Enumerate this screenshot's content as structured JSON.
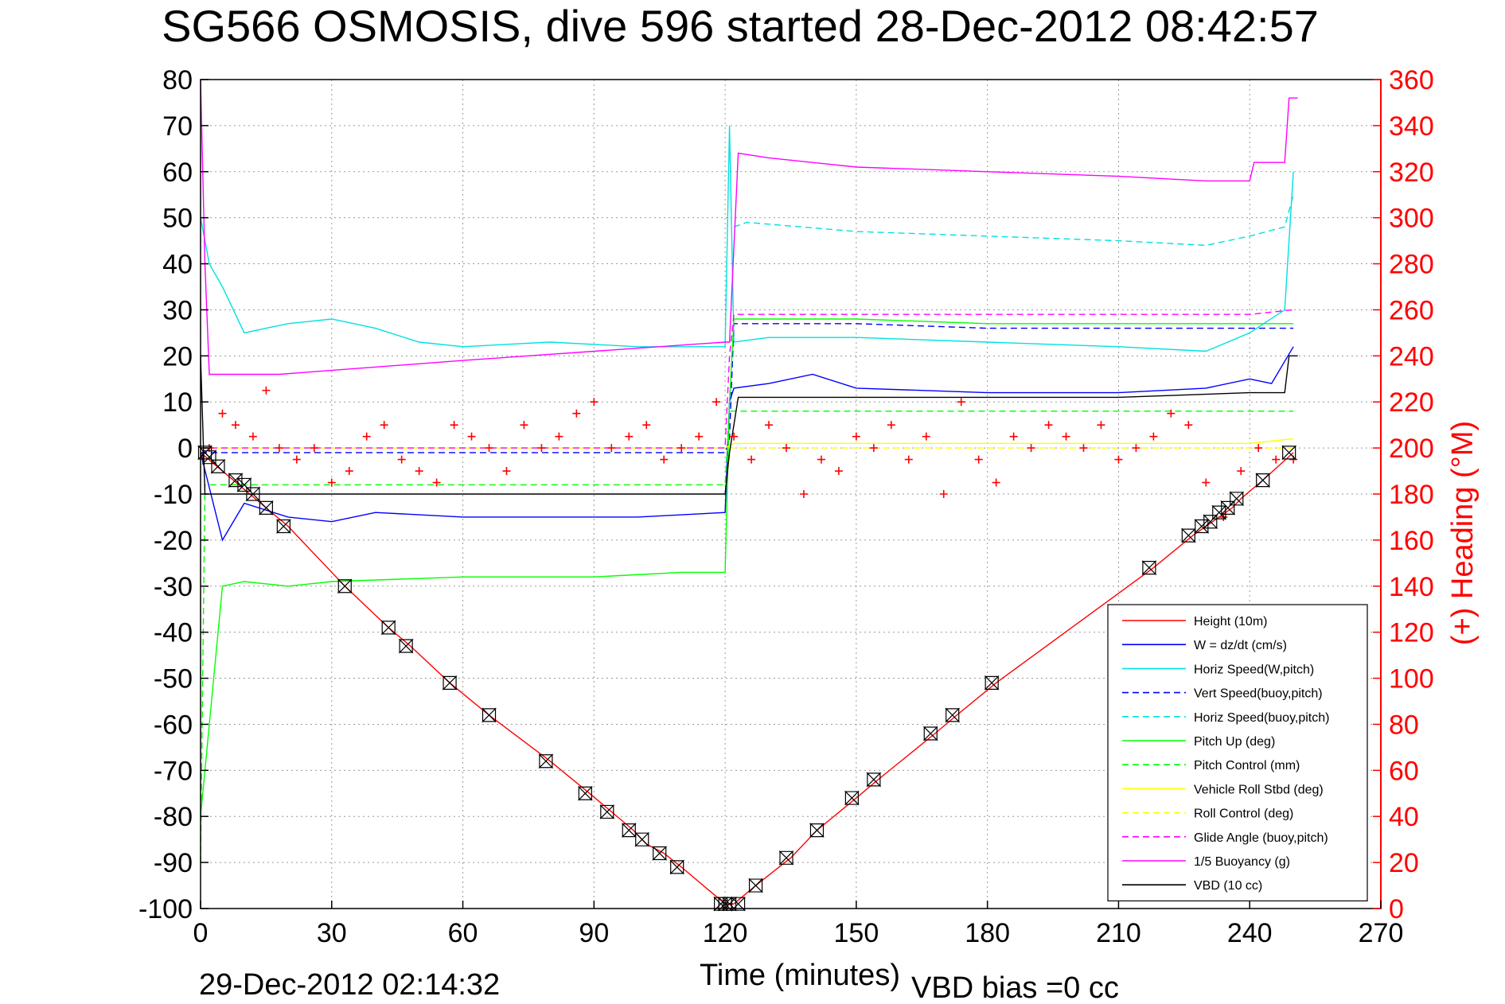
{
  "chart_data": {
    "type": "line",
    "title": "SG566 OSMOSIS, dive 596 started 28-Dec-2012 08:42:57",
    "xlabel": "Time (minutes)",
    "ylabel_right": "(+) Heading (°M)",
    "xlim": [
      0,
      270
    ],
    "ylim_left": [
      -100,
      80
    ],
    "ylim_right": [
      0,
      360
    ],
    "x_ticks": [
      "0",
      "30",
      "60",
      "90",
      "120",
      "150",
      "180",
      "210",
      "240",
      "270"
    ],
    "y_ticks_left": [
      "80",
      "70",
      "60",
      "50",
      "40",
      "30",
      "20",
      "10",
      "0",
      "-10",
      "-20",
      "-30",
      "-40",
      "-50",
      "-60",
      "-70",
      "-80",
      "-90",
      "-100"
    ],
    "y_ticks_right": [
      "360",
      "340",
      "320",
      "300",
      "280",
      "260",
      "240",
      "220",
      "200",
      "180",
      "160",
      "140",
      "120",
      "100",
      "80",
      "60",
      "40",
      "20",
      "0"
    ],
    "grid": true,
    "legend_position": "bottom-right",
    "footer_left": "29-Dec-2012 02:14:32",
    "footer_right": "VBD bias =0 cc",
    "series": [
      {
        "name": "Height (10m)",
        "color": "#ff0000",
        "style": "solid",
        "x": [
          0,
          20,
          33,
          43,
          48,
          57,
          66,
          80,
          89,
          94,
          99,
          102,
          106,
          110,
          120,
          122,
          127,
          135,
          141,
          150,
          155,
          168,
          173,
          182,
          218,
          227,
          230,
          233,
          236,
          238,
          243,
          250
        ],
        "y": [
          -1,
          -17,
          -30,
          -39,
          -43,
          -51,
          -58,
          -68,
          -75,
          -79,
          -83,
          -86,
          -88,
          -91,
          -99,
          -99,
          -95,
          -89,
          -83,
          -76,
          -72,
          -62,
          -58,
          -51,
          -26,
          -19,
          -17,
          -15,
          -13,
          -11,
          -7,
          -1
        ]
      },
      {
        "name": "W = dz/dt (cm/s)",
        "color": "#0000ff",
        "style": "solid",
        "x": [
          0,
          5,
          10,
          20,
          30,
          40,
          60,
          80,
          100,
          120,
          121,
          122,
          130,
          140,
          150,
          180,
          210,
          230,
          240,
          245,
          250
        ],
        "y": [
          -1,
          -20,
          -12,
          -15,
          -16,
          -14,
          -15,
          -15,
          -15,
          -14,
          10,
          13,
          14,
          16,
          13,
          12,
          12,
          13,
          15,
          14,
          22
        ]
      },
      {
        "name": "Horiz Speed(W,pitch)",
        "color": "#00e0e0",
        "style": "solid",
        "x": [
          0,
          2,
          5,
          10,
          15,
          20,
          30,
          40,
          50,
          60,
          80,
          100,
          120,
          121,
          122,
          130,
          150,
          180,
          210,
          230,
          240,
          248,
          250
        ],
        "y": [
          50,
          40,
          35,
          25,
          26,
          27,
          28,
          26,
          23,
          22,
          23,
          22,
          22,
          70,
          23,
          24,
          24,
          23,
          22,
          21,
          25,
          30,
          60
        ]
      },
      {
        "name": "Vert Speed(buoy,pitch)",
        "color": "#0000ff",
        "style": "dashed",
        "x": [
          0,
          120,
          121,
          122,
          150,
          180,
          210,
          240,
          250
        ],
        "y": [
          -1,
          -1,
          2,
          27,
          27,
          26,
          26,
          26,
          26
        ]
      },
      {
        "name": "Horiz Speed(buoy,pitch)",
        "color": "#00e0e0",
        "style": "dashed",
        "x": [
          122,
          125,
          150,
          180,
          210,
          230,
          240,
          248,
          250
        ],
        "y": [
          48,
          49,
          47,
          46,
          45,
          44,
          46,
          48,
          55
        ]
      },
      {
        "name": "Pitch Up (deg)",
        "color": "#00ff00",
        "style": "solid",
        "x": [
          0,
          5,
          10,
          20,
          30,
          60,
          90,
          110,
          120,
          121,
          122,
          150,
          180,
          210,
          240,
          250
        ],
        "y": [
          -80,
          -30,
          -29,
          -30,
          -29,
          -28,
          -28,
          -27,
          -27,
          10,
          28,
          28,
          27,
          27,
          27,
          27
        ]
      },
      {
        "name": "Pitch Control (mm)",
        "color": "#00ff00",
        "style": "dashed",
        "x": [
          0,
          1,
          5,
          20,
          60,
          120,
          121,
          122,
          150,
          180,
          210,
          240,
          250
        ],
        "y": [
          -90,
          -8,
          -8,
          -8,
          -8,
          -8,
          8,
          8,
          8,
          8,
          8,
          8,
          8
        ]
      },
      {
        "name": "Vehicle Roll Stbd (deg)",
        "color": "#ffff00",
        "style": "solid",
        "x": [
          0,
          20,
          40,
          60,
          80,
          100,
          120,
          122,
          140,
          160,
          180,
          200,
          220,
          240,
          250
        ],
        "y": [
          0,
          0,
          0,
          0,
          0,
          0,
          0,
          1,
          1,
          1,
          1,
          1,
          1,
          1,
          2
        ]
      },
      {
        "name": "Roll Control (deg)",
        "color": "#ffff00",
        "style": "dashed",
        "x": [
          0,
          60,
          120,
          122,
          180,
          240,
          250
        ],
        "y": [
          0,
          0,
          0,
          0,
          0,
          0,
          0
        ]
      },
      {
        "name": "Glide Angle (buoy,pitch)",
        "color": "#ff00ff",
        "style": "dashed",
        "x": [
          0,
          120,
          121,
          122,
          150,
          180,
          210,
          240,
          250
        ],
        "y": [
          0,
          0,
          20,
          29,
          29,
          29,
          29,
          29,
          30
        ]
      },
      {
        "name": "1/5 Buoyancy (g)",
        "color": "#ff00ff",
        "style": "solid",
        "x": [
          0,
          1,
          2,
          18,
          60,
          120,
          121,
          123,
          130,
          150,
          180,
          210,
          230,
          240,
          241,
          248,
          249,
          251
        ],
        "y": [
          80,
          40,
          16,
          16,
          19,
          23,
          23,
          64,
          63,
          61,
          60,
          59,
          58,
          58,
          62,
          62,
          76,
          76
        ]
      },
      {
        "name": "VBD (10 cc)",
        "color": "#000000",
        "style": "solid",
        "x": [
          0,
          1,
          2,
          120,
          121,
          123,
          150,
          180,
          210,
          240,
          248,
          249,
          251
        ],
        "y": [
          20,
          -10,
          -10,
          -10,
          -1,
          11,
          11,
          11,
          11,
          12,
          12,
          20,
          20
        ]
      },
      {
        "name": "Heading",
        "color": "#ff0000",
        "style": "markers",
        "x": [
          2,
          5,
          8,
          12,
          15,
          18,
          22,
          26,
          30,
          34,
          38,
          42,
          46,
          50,
          54,
          58,
          62,
          66,
          70,
          74,
          78,
          82,
          86,
          90,
          94,
          98,
          102,
          106,
          110,
          114,
          118,
          122,
          126,
          130,
          134,
          138,
          142,
          146,
          150,
          154,
          158,
          162,
          166,
          170,
          174,
          178,
          182,
          186,
          190,
          194,
          198,
          202,
          206,
          210,
          214,
          218,
          222,
          226,
          230,
          234,
          238,
          242,
          246,
          250
        ],
        "y": [
          200,
          215,
          210,
          205,
          225,
          200,
          195,
          200,
          185,
          190,
          205,
          210,
          195,
          190,
          185,
          210,
          205,
          200,
          190,
          210,
          200,
          205,
          215,
          220,
          200,
          205,
          210,
          195,
          200,
          205,
          220,
          205,
          195,
          210,
          200,
          180,
          195,
          190,
          205,
          200,
          210,
          195,
          205,
          180,
          220,
          195,
          185,
          205,
          200,
          210,
          205,
          200,
          210,
          195,
          200,
          205,
          215,
          210,
          185,
          170,
          190,
          200,
          195,
          195
        ]
      }
    ],
    "depth_markers": {
      "x": [
        1,
        2,
        4,
        8,
        10,
        12,
        15,
        19,
        33,
        43,
        47,
        57,
        66,
        79,
        88,
        93,
        98,
        101,
        105,
        109,
        119,
        120,
        121,
        123,
        127,
        134,
        141,
        149,
        154,
        167,
        172,
        181,
        217,
        226,
        229,
        231,
        233,
        235,
        237,
        243,
        249
      ],
      "y": [
        -1,
        -2,
        -4,
        -7,
        -8,
        -10,
        -13,
        -17,
        -30,
        -39,
        -43,
        -51,
        -58,
        -68,
        -75,
        -79,
        -83,
        -85,
        -88,
        -91,
        -99,
        -99,
        -99,
        -99,
        -95,
        -89,
        -83,
        -76,
        -72,
        -62,
        -58,
        -51,
        -26,
        -19,
        -17,
        -16,
        -14,
        -13,
        -11,
        -7,
        -1
      ]
    }
  }
}
